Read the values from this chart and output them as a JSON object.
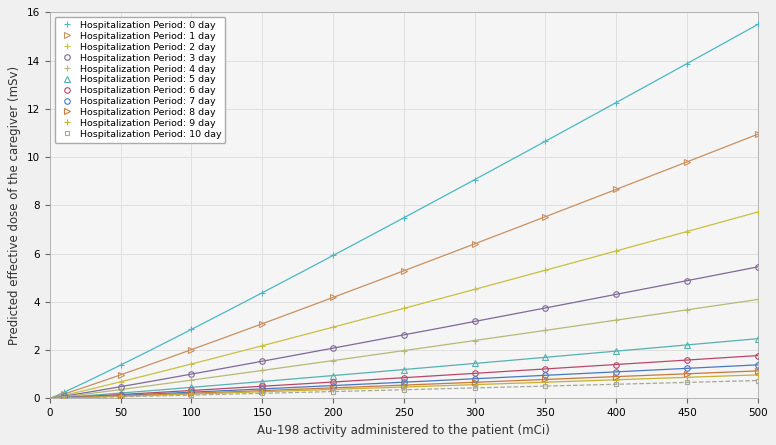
{
  "xlabel": "Au-198 activity administered to the patient (mCi)",
  "ylabel": "Predicted effective dose of the caregiver (mSv)",
  "xlim": [
    0,
    500
  ],
  "ylim": [
    0,
    16
  ],
  "x_ticks": [
    0,
    50,
    100,
    150,
    200,
    250,
    300,
    350,
    400,
    450,
    500
  ],
  "y_ticks": [
    0,
    2,
    4,
    6,
    8,
    10,
    12,
    14,
    16
  ],
  "marker_x": [
    10,
    50,
    100,
    150,
    200,
    250,
    300,
    350,
    400,
    450,
    500
  ],
  "series": [
    {
      "label": "Hospitalization Period: 0 day",
      "coeff": 6.2e-05,
      "power": 1.0,
      "slope": 0.031,
      "color": "#4ab8c5",
      "marker": "+",
      "linestyle": "-",
      "markersize": 5
    },
    {
      "label": "Hospitalization Period: 1 day",
      "slope": 0.0219,
      "color": "#c89060",
      "marker": ">",
      "linestyle": "-",
      "markersize": 4
    },
    {
      "label": "Hospitalization Period: 2 day",
      "slope": 0.01545,
      "color": "#c8c040",
      "marker": "+",
      "linestyle": "-",
      "markersize": 5
    },
    {
      "label": "Hospitalization Period: 3 day",
      "slope": 0.0109,
      "color": "#806898",
      "marker": "o",
      "linestyle": "-",
      "markersize": 4
    },
    {
      "label": "Hospitalization Period: 4 day",
      "slope": 0.0082,
      "color": "#b8b878",
      "marker": "+",
      "linestyle": "-",
      "markersize": 5
    },
    {
      "label": "Hospitalization Period: 5 day",
      "slope": 0.00495,
      "color": "#58b0b0",
      "marker": "^",
      "linestyle": "-",
      "markersize": 4
    },
    {
      "label": "Hospitalization Period: 6 day",
      "slope": 0.00355,
      "color": "#b84868",
      "marker": "o",
      "linestyle": "-",
      "markersize": 4
    },
    {
      "label": "Hospitalization Period: 7 day",
      "slope": 0.00278,
      "color": "#4878c0",
      "marker": "o",
      "linestyle": "-",
      "markersize": 4
    },
    {
      "label": "Hospitalization Period: 8 day",
      "slope": 0.00228,
      "color": "#c87838",
      "marker": ">",
      "linestyle": "-",
      "markersize": 4
    },
    {
      "label": "Hospitalization Period: 9 day",
      "slope": 0.00195,
      "color": "#c8b030",
      "marker": "+",
      "linestyle": "-",
      "markersize": 5
    },
    {
      "label": "Hospitalization Period: 10 day",
      "slope": 0.00148,
      "color": "#a8a898",
      "marker": "s",
      "linestyle": "--",
      "markersize": 3
    }
  ],
  "background_color": "#f5f5f5",
  "grid_color": "#d8d8d8",
  "figure_facecolor": "#f0f0f0"
}
